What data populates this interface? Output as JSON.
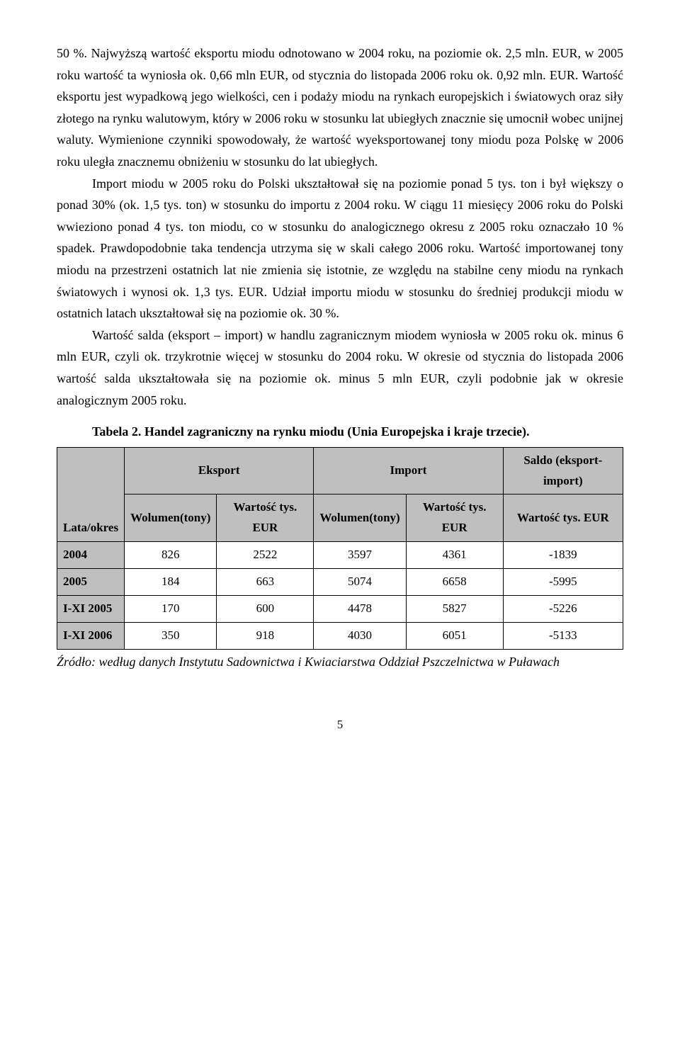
{
  "paragraphs": {
    "p1": "50 %. Najwyższą wartość eksportu miodu odnotowano w 2004 roku, na poziomie ok. 2,5 mln. EUR, w 2005 roku wartość ta wyniosła ok. 0,66 mln EUR, od stycznia do listopada 2006 roku ok. 0,92 mln. EUR. Wartość eksportu jest wypadkową jego wielkości, cen i podaży miodu na rynkach europejskich i światowych oraz siły złotego na rynku walutowym, który w 2006 roku w stosunku lat ubiegłych znacznie się umocnił wobec unijnej waluty. Wymienione czynniki spowodowały, że wartość wyeksportowanej tony miodu poza Polskę w 2006 roku uległa znacznemu obniżeniu w stosunku do lat ubiegłych.",
    "p2": "Import miodu w 2005 roku do Polski ukształtował się na poziomie ponad 5 tys. ton i był większy o ponad 30% (ok. 1,5 tys. ton) w stosunku do importu z 2004 roku. W ciągu 11 miesięcy 2006 roku do Polski wwieziono ponad 4 tys. ton miodu, co w stosunku do analogicznego okresu z 2005 roku oznaczało 10 % spadek. Prawdopodobnie taka tendencja utrzyma się w skali całego 2006 roku. Wartość importowanej tony miodu na przestrzeni ostatnich lat nie zmienia się istotnie, ze względu na stabilne ceny miodu na rynkach światowych i wynosi ok. 1,3 tys. EUR. Udział importu miodu w stosunku do średniej produkcji miodu w ostatnich latach ukształtował się na poziomie ok. 30 %.",
    "p3": "Wartość salda (eksport – import) w handlu zagranicznym miodem wyniosła w 2005 roku ok. minus 6 mln EUR, czyli ok. trzykrotnie więcej w stosunku do 2004 roku. W okresie od stycznia do listopada 2006 wartość salda ukształtowała się na poziomie ok. minus 5 mln EUR, czyli podobnie jak w okresie analogicznym 2005 roku."
  },
  "table": {
    "title": "Tabela 2. Handel zagraniczny na rynku miodu (Unia Europejska i kraje trzecie).",
    "columns": {
      "lata": "Lata/okres",
      "eksport": "Eksport",
      "import": "Import",
      "saldo": "Saldo (eksport-import)",
      "wolumen": "Wolumen(tony)",
      "wartosc": "Wartość tys. EUR"
    },
    "rows": [
      {
        "label": "2004",
        "ev": "826",
        "ew": "2522",
        "iv": "3597",
        "iw": "4361",
        "s": "-1839"
      },
      {
        "label": "2005",
        "ev": "184",
        "ew": "663",
        "iv": "5074",
        "iw": "6658",
        "s": "-5995"
      },
      {
        "label": "I-XI 2005",
        "ev": "170",
        "ew": "600",
        "iv": "4478",
        "iw": "5827",
        "s": "-5226"
      },
      {
        "label": "I-XI 2006",
        "ev": "350",
        "ew": "918",
        "iv": "4030",
        "iw": "6051",
        "s": "-5133"
      }
    ],
    "source": "Źródło: według danych Instytutu Sadownictwa i Kwiaciarstwa Oddział Pszczelnictwa w Puławach"
  },
  "page_number": "5"
}
